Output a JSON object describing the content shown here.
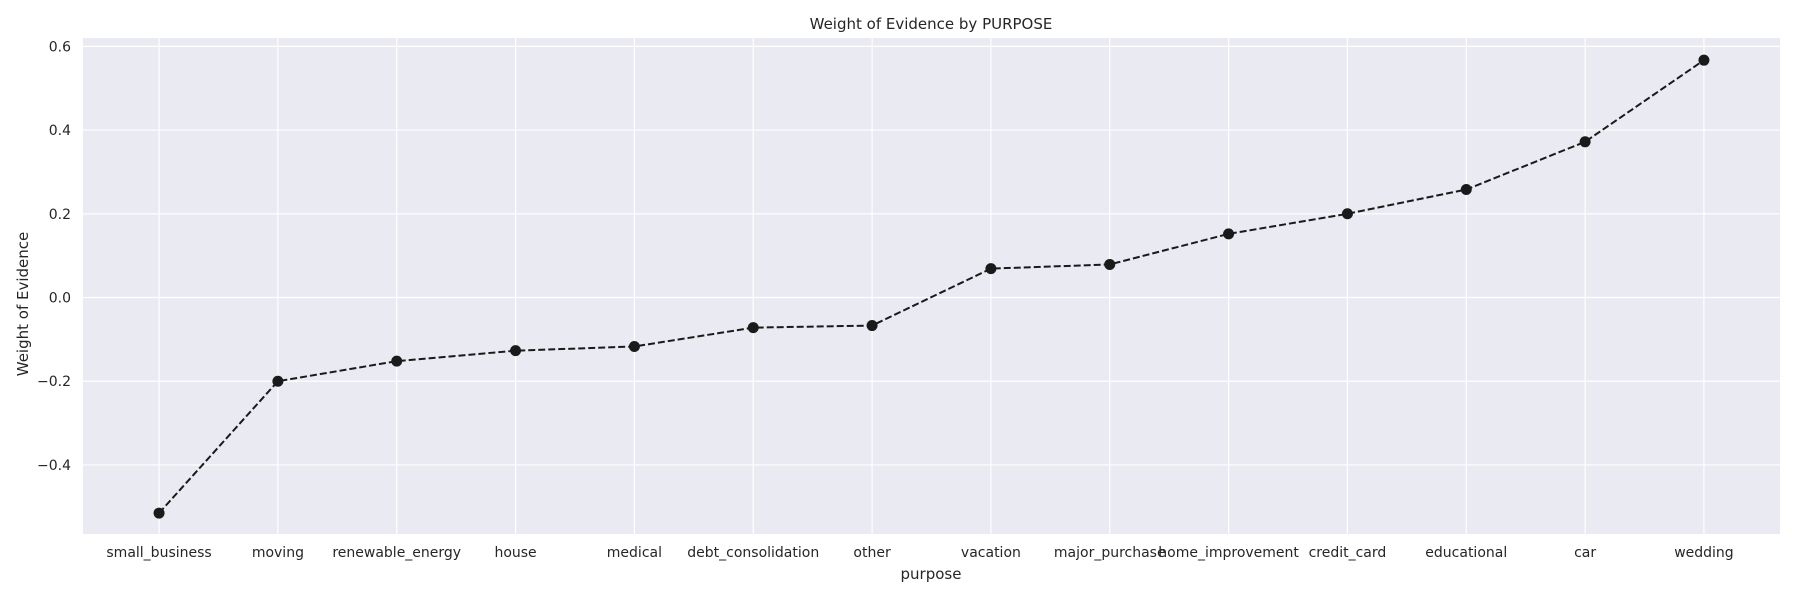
{
  "chart_data": {
    "type": "line",
    "title": "Weight of Evidence by PURPOSE",
    "xlabel": "purpose",
    "ylabel": "Weight of Evidence",
    "categories": [
      "small_business",
      "moving",
      "renewable_energy",
      "house",
      "medical",
      "debt_consolidation",
      "other",
      "vacation",
      "major_purchase",
      "home_improvement",
      "credit_card",
      "educational",
      "car",
      "wedding"
    ],
    "series": [
      {
        "values": [
          -0.515,
          -0.2,
          -0.152,
          -0.127,
          -0.117,
          -0.072,
          -0.067,
          0.069,
          0.079,
          0.152,
          0.2,
          0.258,
          0.372,
          0.567
        ],
        "color": "#1a1a1a",
        "line_style": "dashed",
        "marker": "circle"
      }
    ],
    "ylim": [
      -0.565,
      0.62
    ],
    "yticks": [
      -0.4,
      -0.2,
      0.0,
      0.2,
      0.4,
      0.6
    ],
    "ytick_labels": [
      "−0.4",
      "−0.2",
      "0.0",
      "0.2",
      "0.4",
      "0.6"
    ],
    "grid": true,
    "background": "#eaeaf2",
    "grid_color": "#ffffff"
  }
}
